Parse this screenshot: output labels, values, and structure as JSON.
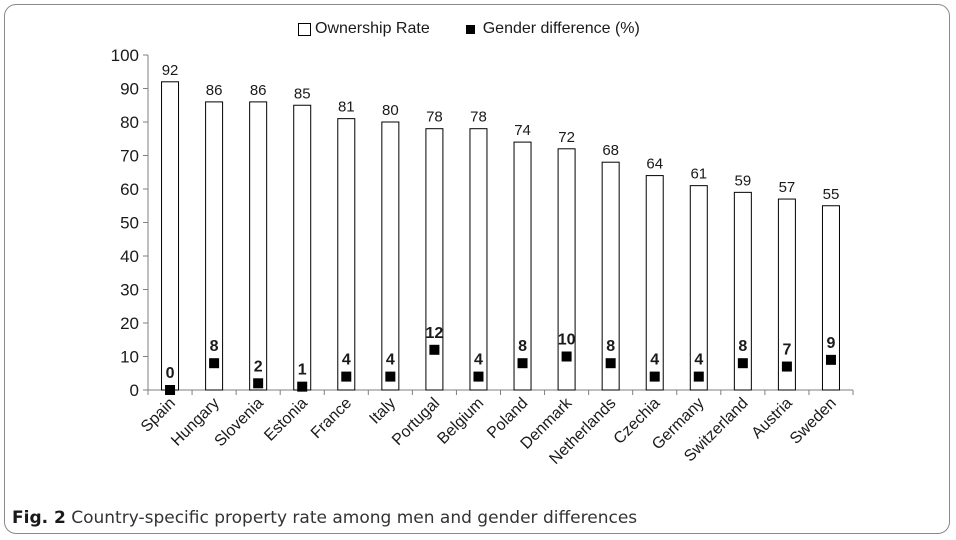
{
  "figure": {
    "caption_label": "Fig. 2",
    "caption_text": "Country-specific property rate among men and gender differences"
  },
  "chart_data": {
    "type": "bar",
    "categories": [
      "Spain",
      "Hungary",
      "Slovenia",
      "Estonia",
      "France",
      "Italy",
      "Portugal",
      "Belgium",
      "Poland",
      "Denmark",
      "Netherlands",
      "Czechia",
      "Germany",
      "Switzerland",
      "Austria",
      "Sweden"
    ],
    "series": [
      {
        "name": "Ownership Rate",
        "kind": "bar",
        "values": [
          92,
          86,
          86,
          85,
          81,
          80,
          78,
          78,
          74,
          72,
          68,
          64,
          61,
          59,
          57,
          55
        ],
        "labels": [
          "92",
          "86",
          "86",
          "85",
          "81",
          "80",
          "78",
          "78",
          "74",
          "72",
          "68",
          "64",
          "61",
          "59",
          "57",
          "55"
        ]
      },
      {
        "name": "Gender difference (%)",
        "kind": "marker",
        "values": [
          0,
          8,
          2,
          1,
          4,
          4,
          12,
          4,
          8,
          10,
          8,
          4,
          4,
          8,
          7,
          9
        ],
        "labels": [
          "0",
          "8",
          "2",
          "1",
          "4",
          "4",
          "12",
          "4",
          "8",
          "10",
          "8",
          "4",
          "4",
          "8",
          "7",
          "9"
        ]
      }
    ],
    "legend": {
      "position": "top",
      "open_square": "☐",
      "filled_square": "■"
    },
    "ylim": [
      0,
      100
    ],
    "yticks": [
      0,
      10,
      20,
      30,
      40,
      50,
      60,
      70,
      80,
      90,
      100
    ],
    "ytick_labels": [
      "0",
      "10",
      "20",
      "30",
      "40",
      "50",
      "60",
      "70",
      "80",
      "90",
      "100"
    ],
    "grid": false,
    "colors": {
      "bar_fill": "#ffffff",
      "bar_stroke": "#000000",
      "marker": "#000000",
      "axis": "#7f7f7f"
    }
  }
}
